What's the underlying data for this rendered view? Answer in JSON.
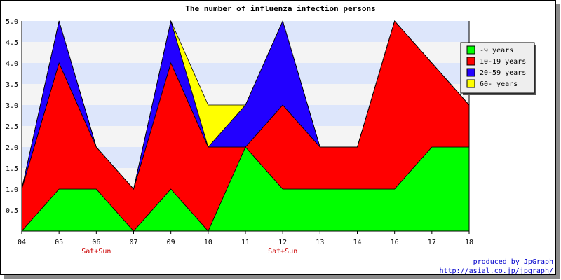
{
  "chart_data": {
    "type": "area",
    "stacked": true,
    "title": "The number of influenza infection persons",
    "categories": [
      "04",
      "05",
      "06",
      "07",
      "09",
      "10",
      "11",
      "12",
      "13",
      "14",
      "16",
      "17",
      "18"
    ],
    "series": [
      {
        "name": "-9 years",
        "color": "#00ff00",
        "values": [
          0,
          1,
          1,
          0,
          1,
          0,
          2,
          1,
          1,
          1,
          1,
          2,
          2
        ]
      },
      {
        "name": "10-19 years",
        "color": "#ff0000",
        "values": [
          1,
          3,
          1,
          1,
          3,
          2,
          0,
          2,
          1,
          1,
          4,
          2,
          1
        ]
      },
      {
        "name": "20-59 years",
        "color": "#2200ff",
        "values": [
          0,
          1,
          0,
          0,
          1,
          0,
          1,
          2,
          0,
          0,
          0,
          0,
          0
        ]
      },
      {
        "name": "60- years",
        "color": "#ffff00",
        "values": [
          0,
          0,
          0,
          0,
          0,
          1,
          0,
          0,
          0,
          0,
          0,
          0,
          0
        ]
      }
    ],
    "ylim": [
      0,
      5
    ],
    "yticks": [
      "0.5",
      "1.0",
      "1.5",
      "2.0",
      "2.5",
      "3.0",
      "3.5",
      "4.0",
      "4.5",
      "5.0"
    ],
    "xlabel": "",
    "ylabel": "",
    "grid_bands": [
      "#dde6fb",
      "#f4f4f4"
    ],
    "legend_position": "right",
    "annotations": [
      {
        "text": "Sat+Sun",
        "category": "06",
        "color": "#cc0000"
      },
      {
        "text": "Sat+Sun",
        "category": "12",
        "color": "#cc0000"
      }
    ]
  },
  "credits": {
    "line1": "produced by JpGraph",
    "line2": "http://asial.co.jp/jpgraph/",
    "color": "#0000cc"
  }
}
